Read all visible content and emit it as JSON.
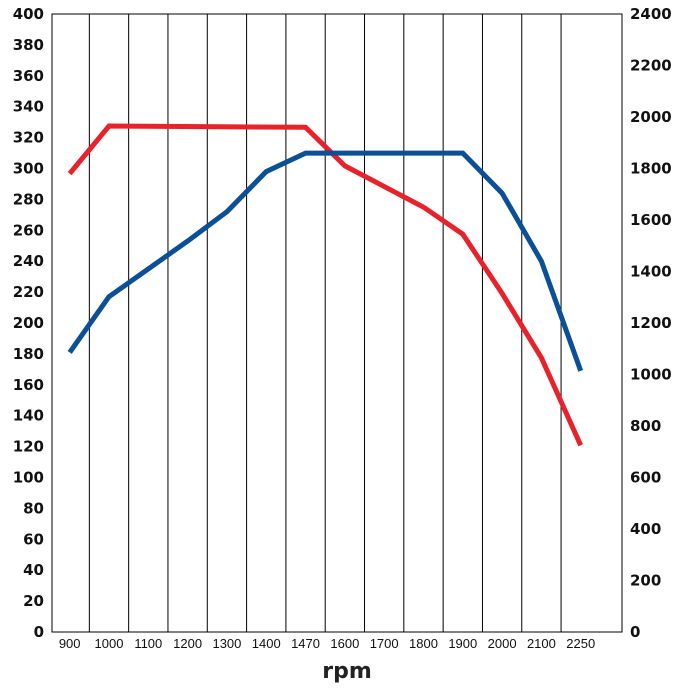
{
  "chart_data": {
    "type": "line",
    "xlabel": "rpm",
    "x_ticks": [
      "900",
      "1000",
      "1100",
      "1200",
      "1300",
      "1400",
      "1470",
      "1600",
      "1700",
      "1800",
      "1900",
      "2000",
      "2100",
      "2250"
    ],
    "y_left": {
      "ticks": [
        "0",
        "20",
        "40",
        "60",
        "80",
        "100",
        "120",
        "140",
        "160",
        "180",
        "200",
        "220",
        "240",
        "260",
        "280",
        "300",
        "320",
        "340",
        "360",
        "380",
        "400"
      ],
      "range": [
        0,
        400
      ]
    },
    "y_right": {
      "ticks": [
        "0",
        "200",
        "400",
        "600",
        "800",
        "1000",
        "1200",
        "1400",
        "1600",
        "1800",
        "2000",
        "2200",
        "2400"
      ],
      "range": [
        0,
        2400
      ]
    },
    "grid": {
      "vertical": true,
      "horizontal": false
    },
    "series": [
      {
        "color": "#e8222b",
        "axis": "right",
        "points": [
          {
            "x": 900,
            "y": 1780
          },
          {
            "x": 1000,
            "y": 1965
          },
          {
            "x": 1470,
            "y": 1960
          },
          {
            "x": 1600,
            "y": 1810
          },
          {
            "x": 1800,
            "y": 1650
          },
          {
            "x": 1900,
            "y": 1545
          },
          {
            "x": 2000,
            "y": 1315
          },
          {
            "x": 2100,
            "y": 1065
          },
          {
            "x": 2250,
            "y": 725
          }
        ]
      },
      {
        "color": "#0b4f96",
        "axis": "left",
        "points": [
          {
            "x": 900,
            "y": 181
          },
          {
            "x": 1000,
            "y": 217
          },
          {
            "x": 1100,
            "y": 235
          },
          {
            "x": 1200,
            "y": 253
          },
          {
            "x": 1300,
            "y": 272
          },
          {
            "x": 1400,
            "y": 298
          },
          {
            "x": 1470,
            "y": 310
          },
          {
            "x": 1900,
            "y": 310
          },
          {
            "x": 2000,
            "y": 284
          },
          {
            "x": 2100,
            "y": 240
          },
          {
            "x": 2250,
            "y": 169
          }
        ]
      }
    ]
  }
}
